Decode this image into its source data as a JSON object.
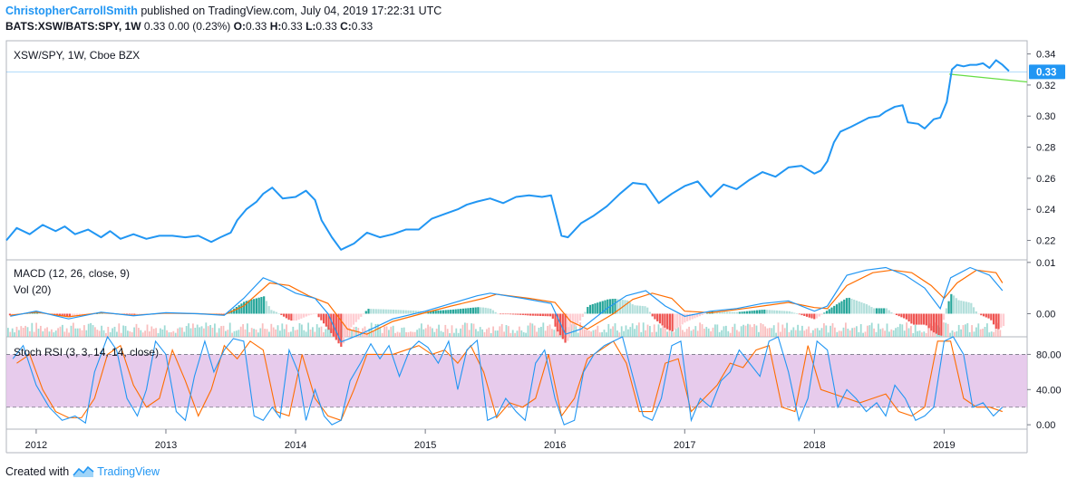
{
  "header": {
    "author": "ChristopherCarrollSmith",
    "published": "published on TradingView.com, July 04, 2019 17:22:31 UTC",
    "symbol": "BATS:XSW/BATS:SPY, 1W",
    "quote": "0.33 0.00 (0.23%)",
    "ohlc_o_label": "O:",
    "ohlc_o": "0.33",
    "ohlc_h_label": "H:",
    "ohlc_h": "0.33",
    "ohlc_l_label": "L:",
    "ohlc_l": "0.33",
    "ohlc_c_label": "C:",
    "ohlc_c": "0.33"
  },
  "footer": {
    "created_with": "Created with",
    "brand": "TradingView"
  },
  "colors": {
    "price_line": "#2196f3",
    "macd_line": "#2196f3",
    "signal_line": "#ff6d00",
    "hist_up_strong": "#26a69a",
    "hist_up_weak": "#b2dfdb",
    "hist_down_strong": "#ef5350",
    "hist_down_weak": "#ffcdd2",
    "vol_up": "#7fcfc7",
    "vol_down": "#f7a9a9",
    "stoch_k": "#2196f3",
    "stoch_d": "#ff6d00",
    "stoch_band": "#e1bee7",
    "trendline": "#66dd44",
    "price_badge": "#2196f3",
    "grid": "#e6e9ee"
  },
  "chart_data": [
    {
      "type": "line",
      "label": "XSW/SPY, 1W, Cboe BZX",
      "last_value": "0.33",
      "y_ticks": [
        "0.22",
        "0.24",
        "0.26",
        "0.28",
        "0.30",
        "0.32",
        "0.34"
      ],
      "ylim": [
        0.2075,
        0.3485
      ],
      "x_ticks": [
        "2012",
        "2013",
        "2014",
        "2015",
        "2016",
        "2017",
        "2018",
        "2019"
      ],
      "xlim": [
        2011.77,
        2019.64
      ],
      "series": [
        {
          "x": [
            2011.77,
            2011.85,
            2011.95,
            2012.05,
            2012.15,
            2012.22,
            2012.3,
            2012.4,
            2012.5,
            2012.57,
            2012.65,
            2012.75,
            2012.85,
            2012.95,
            2013.05,
            2013.15,
            2013.25,
            2013.35,
            2013.42,
            2013.5,
            2013.55,
            2013.62,
            2013.7,
            2013.75,
            2013.82,
            2013.9,
            2014.0,
            2014.08,
            2014.15,
            2014.2,
            2014.28,
            2014.35,
            2014.45,
            2014.55,
            2014.65,
            2014.75,
            2014.85,
            2014.95,
            2015.05,
            2015.15,
            2015.25,
            2015.32,
            2015.4,
            2015.5,
            2015.6,
            2015.7,
            2015.8,
            2015.9,
            2015.97,
            2016.05,
            2016.1,
            2016.2,
            2016.3,
            2016.4,
            2016.5,
            2016.6,
            2016.7,
            2016.8,
            2016.9,
            2017.0,
            2017.1,
            2017.2,
            2017.3,
            2017.4,
            2017.5,
            2017.6,
            2017.7,
            2017.8,
            2017.9,
            2018.0,
            2018.05,
            2018.1,
            2018.15,
            2018.2,
            2018.28,
            2018.35,
            2018.42,
            2018.5,
            2018.55,
            2018.62,
            2018.68,
            2018.72,
            2018.8,
            2018.85,
            2018.92,
            2018.97,
            2019.02,
            2019.06,
            2019.1,
            2019.15,
            2019.2,
            2019.25,
            2019.3,
            2019.35,
            2019.4,
            2019.45,
            2019.5
          ],
          "values": [
            0.22,
            0.228,
            0.224,
            0.23,
            0.226,
            0.229,
            0.224,
            0.227,
            0.222,
            0.226,
            0.221,
            0.224,
            0.221,
            0.223,
            0.223,
            0.222,
            0.223,
            0.219,
            0.222,
            0.225,
            0.233,
            0.24,
            0.245,
            0.25,
            0.254,
            0.247,
            0.248,
            0.252,
            0.246,
            0.233,
            0.222,
            0.214,
            0.218,
            0.225,
            0.222,
            0.224,
            0.227,
            0.227,
            0.234,
            0.237,
            0.24,
            0.243,
            0.245,
            0.247,
            0.244,
            0.248,
            0.249,
            0.248,
            0.249,
            0.223,
            0.222,
            0.231,
            0.236,
            0.242,
            0.25,
            0.257,
            0.256,
            0.244,
            0.25,
            0.255,
            0.258,
            0.248,
            0.256,
            0.253,
            0.259,
            0.264,
            0.261,
            0.267,
            0.268,
            0.263,
            0.265,
            0.271,
            0.283,
            0.29,
            0.293,
            0.296,
            0.299,
            0.3,
            0.303,
            0.306,
            0.307,
            0.296,
            0.295,
            0.292,
            0.298,
            0.299,
            0.309,
            0.33,
            0.333,
            0.332,
            0.333,
            0.333,
            0.334,
            0.331,
            0.336,
            0.333,
            0.329
          ]
        }
      ],
      "trendline": {
        "x": [
          2019.04,
          2019.64
        ],
        "values": [
          0.327,
          0.322
        ]
      },
      "horizontal_line": 0.3285
    },
    {
      "type": "line",
      "label": "MACD (12, 26, close, 9)",
      "secondary_label": "Vol (20)",
      "y_ticks": [
        "0.01",
        "0.00"
      ],
      "ylim": [
        -0.0045,
        0.0105
      ],
      "series": [
        {
          "x": [
            2011.8,
            2012.0,
            2012.25,
            2012.5,
            2012.75,
            2013.0,
            2013.25,
            2013.45,
            2013.6,
            2013.75,
            2013.85,
            2014.0,
            2014.15,
            2014.25,
            2014.35,
            2014.5,
            2014.75,
            2015.0,
            2015.2,
            2015.4,
            2015.5,
            2015.75,
            2015.97,
            2016.08,
            2016.2,
            2016.4,
            2016.55,
            2016.7,
            2016.85,
            2017.0,
            2017.2,
            2017.4,
            2017.6,
            2017.8,
            2018.0,
            2018.1,
            2018.25,
            2018.4,
            2018.55,
            2018.7,
            2018.85,
            2018.97,
            2019.05,
            2019.2,
            2019.35,
            2019.45
          ],
          "values": [
            -0.0005,
            0.0005,
            -0.001,
            0.0003,
            -0.0004,
            0.0002,
            0.0,
            -0.0003,
            0.003,
            0.007,
            0.006,
            0.004,
            0.003,
            0.0,
            -0.0055,
            -0.004,
            -0.001,
            0.0005,
            0.002,
            0.0035,
            0.004,
            0.003,
            0.002,
            -0.004,
            -0.003,
            0.001,
            0.0035,
            0.0045,
            0.0015,
            -0.0005,
            0.0005,
            0.001,
            0.002,
            0.0025,
            0.0005,
            0.0015,
            0.0075,
            0.0085,
            0.009,
            0.0075,
            0.005,
            0.001,
            0.007,
            0.009,
            0.0075,
            0.0045
          ]
        },
        {
          "x": [
            2011.8,
            2012.0,
            2012.25,
            2012.5,
            2012.75,
            2013.0,
            2013.25,
            2013.45,
            2013.6,
            2013.8,
            2013.95,
            2014.1,
            2014.25,
            2014.4,
            2014.55,
            2014.75,
            2015.0,
            2015.2,
            2015.45,
            2015.55,
            2015.8,
            2016.0,
            2016.12,
            2016.25,
            2016.45,
            2016.6,
            2016.75,
            2016.9,
            2017.0,
            2017.2,
            2017.4,
            2017.6,
            2017.8,
            2018.0,
            2018.1,
            2018.25,
            2018.45,
            2018.6,
            2018.75,
            2018.9,
            2019.0,
            2019.1,
            2019.25,
            2019.4,
            2019.45
          ],
          "values": [
            -0.0003,
            0.0003,
            -0.0006,
            0.0002,
            -0.0003,
            0.0001,
            0.0,
            -0.0002,
            0.0015,
            0.006,
            0.0055,
            0.0035,
            0.002,
            -0.003,
            -0.004,
            -0.0015,
            0.0002,
            0.0015,
            0.003,
            0.0038,
            0.003,
            0.0022,
            -0.0015,
            -0.003,
            0.0,
            0.0028,
            0.004,
            0.003,
            0.0005,
            0.0002,
            0.0008,
            0.0015,
            0.0022,
            0.0012,
            0.001,
            0.0055,
            0.008,
            0.0085,
            0.008,
            0.0055,
            0.003,
            0.006,
            0.0085,
            0.008,
            0.006
          ]
        }
      ]
    },
    {
      "type": "line",
      "label": "Stoch RSI (3, 3, 14, 14, close)",
      "y_ticks": [
        "80.00",
        "40.00",
        "0.00"
      ],
      "ylim": [
        -5,
        100
      ],
      "band": [
        20,
        80
      ],
      "series": [
        {
          "x": [
            2011.82,
            2011.9,
            2012.0,
            2012.1,
            2012.2,
            2012.3,
            2012.38,
            2012.45,
            2012.55,
            2012.62,
            2012.7,
            2012.78,
            2012.85,
            2012.92,
            2013.0,
            2013.08,
            2013.15,
            2013.22,
            2013.3,
            2013.37,
            2013.45,
            2013.52,
            2013.6,
            2013.68,
            2013.75,
            2013.82,
            2013.88,
            2013.95,
            2014.02,
            2014.08,
            2014.15,
            2014.22,
            2014.28,
            2014.35,
            2014.42,
            2014.5,
            2014.58,
            2014.65,
            2014.72,
            2014.8,
            2014.88,
            2014.95,
            2015.02,
            2015.1,
            2015.18,
            2015.25,
            2015.32,
            2015.4,
            2015.48,
            2015.55,
            2015.62,
            2015.7,
            2015.77,
            2015.85,
            2015.92,
            2016.0,
            2016.07,
            2016.15,
            2016.22,
            2016.3,
            2016.38,
            2016.45,
            2016.52,
            2016.6,
            2016.68,
            2016.75,
            2016.82,
            2016.9,
            2016.97,
            2017.05,
            2017.12,
            2017.2,
            2017.28,
            2017.35,
            2017.42,
            2017.5,
            2017.58,
            2017.65,
            2017.72,
            2017.8,
            2017.88,
            2017.95,
            2018.02,
            2018.1,
            2018.18,
            2018.25,
            2018.32,
            2018.4,
            2018.48,
            2018.55,
            2018.62,
            2018.7,
            2018.78,
            2018.85,
            2018.92,
            2019.0,
            2019.07,
            2019.15,
            2019.22,
            2019.3,
            2019.38,
            2019.45
          ],
          "values": [
            75,
            90,
            45,
            20,
            5,
            10,
            2,
            60,
            100,
            85,
            30,
            10,
            40,
            95,
            80,
            15,
            5,
            55,
            95,
            60,
            85,
            98,
            95,
            10,
            5,
            20,
            8,
            85,
            60,
            5,
            40,
            10,
            0,
            5,
            50,
            70,
            92,
            75,
            90,
            55,
            85,
            95,
            88,
            70,
            95,
            40,
            85,
            96,
            5,
            10,
            30,
            15,
            5,
            70,
            85,
            30,
            0,
            5,
            60,
            80,
            90,
            95,
            100,
            55,
            10,
            5,
            30,
            90,
            95,
            5,
            30,
            20,
            50,
            60,
            85,
            70,
            55,
            95,
            100,
            60,
            5,
            30,
            95,
            85,
            20,
            40,
            30,
            15,
            25,
            10,
            45,
            30,
            5,
            10,
            20,
            95,
            100,
            80,
            20,
            25,
            10,
            20
          ]
        },
        {
          "x": [
            2011.85,
            2011.95,
            2012.05,
            2012.15,
            2012.25,
            2012.35,
            2012.45,
            2012.55,
            2012.65,
            2012.75,
            2012.85,
            2012.95,
            2013.05,
            2013.15,
            2013.25,
            2013.35,
            2013.45,
            2013.55,
            2013.65,
            2013.75,
            2013.85,
            2013.95,
            2014.05,
            2014.15,
            2014.25,
            2014.35,
            2014.45,
            2014.55,
            2014.65,
            2014.75,
            2014.85,
            2014.95,
            2015.05,
            2015.15,
            2015.25,
            2015.35,
            2015.45,
            2015.55,
            2015.65,
            2015.75,
            2015.85,
            2015.95,
            2016.05,
            2016.15,
            2016.25,
            2016.35,
            2016.45,
            2016.55,
            2016.65,
            2016.75,
            2016.85,
            2016.95,
            2017.05,
            2017.15,
            2017.25,
            2017.35,
            2017.45,
            2017.55,
            2017.65,
            2017.75,
            2017.85,
            2017.95,
            2018.05,
            2018.15,
            2018.25,
            2018.35,
            2018.45,
            2018.55,
            2018.65,
            2018.75,
            2018.85,
            2018.95,
            2019.05,
            2019.15,
            2019.25,
            2019.35,
            2019.45
          ],
          "values": [
            70,
            80,
            40,
            15,
            8,
            8,
            30,
            80,
            90,
            45,
            20,
            30,
            85,
            50,
            10,
            40,
            90,
            75,
            95,
            85,
            15,
            10,
            80,
            30,
            10,
            5,
            40,
            80,
            80,
            80,
            85,
            90,
            80,
            85,
            70,
            90,
            60,
            8,
            25,
            20,
            30,
            80,
            10,
            30,
            75,
            85,
            95,
            70,
            15,
            15,
            70,
            75,
            15,
            30,
            45,
            70,
            65,
            85,
            90,
            20,
            15,
            90,
            40,
            35,
            30,
            25,
            30,
            35,
            15,
            10,
            20,
            95,
            95,
            30,
            20,
            20,
            15
          ]
        }
      ]
    },
    {
      "type": "bar",
      "label": "Vol (20)",
      "note": "volume histogram drawn behind MACD pane",
      "x_ticks": [
        "2012",
        "2013",
        "2014",
        "2015",
        "2016",
        "2017",
        "2018",
        "2019"
      ]
    }
  ]
}
